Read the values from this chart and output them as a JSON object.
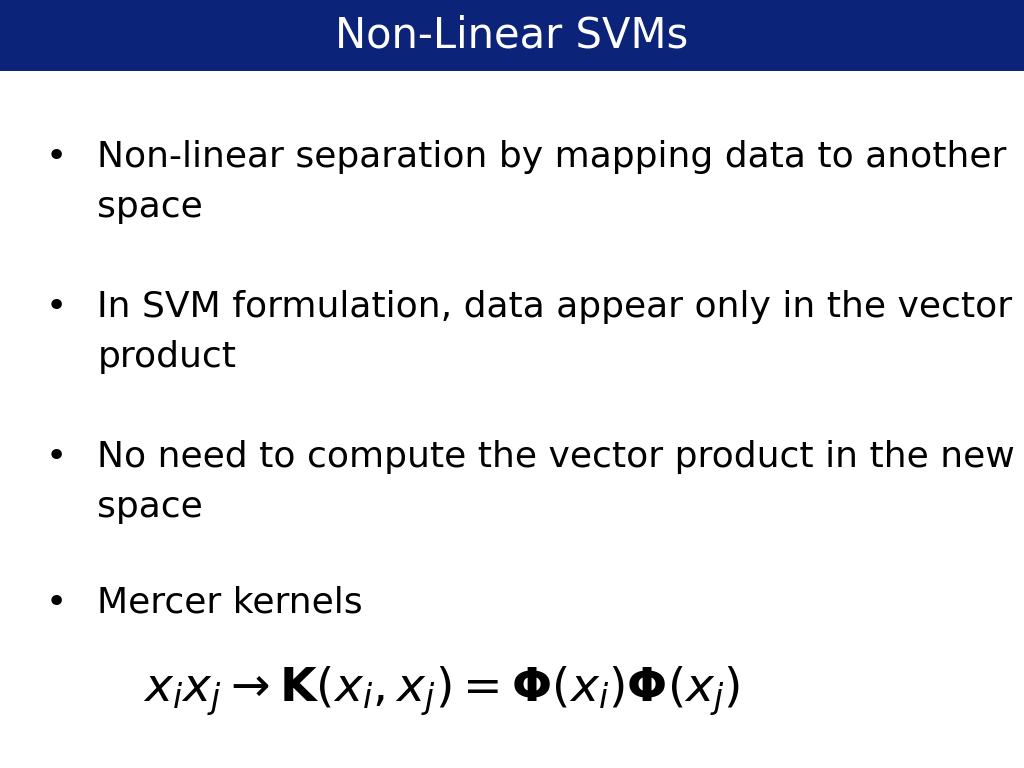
{
  "title": "Non-Linear SVMs",
  "title_bg_color": "#0C237A",
  "title_text_color": "#FFFFFF",
  "bg_color": "#FFFFFF",
  "text_color": "#000000",
  "bullet1_line1": "Non-linear separation by mapping data to another",
  "bullet1_line2": "space",
  "bullet2_line1": "In SVM formulation, data appear only in the vector",
  "bullet2_line2": "product",
  "bullet3_line1": "No need to compute the vector product in the new",
  "bullet3_line2": "space",
  "bullet4_line1": "Mercer kernels",
  "formula": "$x_ix_j \\rightarrow \\mathbf{K}(x_i, x_j) = \\mathbf{\\Phi}(x_i)\\mathbf{\\Phi}(x_j)$",
  "bullet_fontsize": 26,
  "formula_fontsize": 34,
  "title_fontsize": 30
}
